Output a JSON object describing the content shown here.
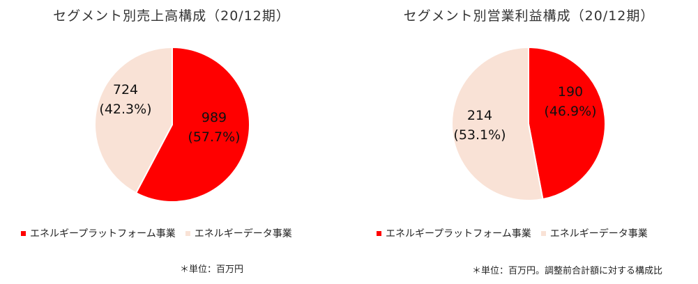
{
  "colors": {
    "platform": "#ff0000",
    "data": "#f9e2d6"
  },
  "chart_data": [
    {
      "type": "pie",
      "title": "セグメント別売上高構成（20/12期）",
      "slices": [
        {
          "name": "エネルギープラットフォーム事業",
          "value": 989,
          "label_value": "989",
          "label_pct": "(57.7%)"
        },
        {
          "name": "エネルギーデータ事業",
          "value": 724,
          "label_value": "724",
          "label_pct": "(42.3%)"
        }
      ],
      "legend": [
        "エネルギープラットフォーム事業",
        "エネルギーデータ事業"
      ],
      "note": "＊単位：百万円"
    },
    {
      "type": "pie",
      "title": "セグメント別営業利益構成（20/12期）",
      "slices": [
        {
          "name": "エネルギープラットフォーム事業",
          "value": 190,
          "label_value": "190",
          "label_pct": "(46.9%)"
        },
        {
          "name": "エネルギーデータ事業",
          "value": 214,
          "label_value": "214",
          "label_pct": "(53.1%)"
        }
      ],
      "legend": [
        "エネルギープラットフォーム事業",
        "エネルギーデータ事業"
      ],
      "note": "＊単位：百万円。調整前合計額に対する構成比"
    }
  ]
}
